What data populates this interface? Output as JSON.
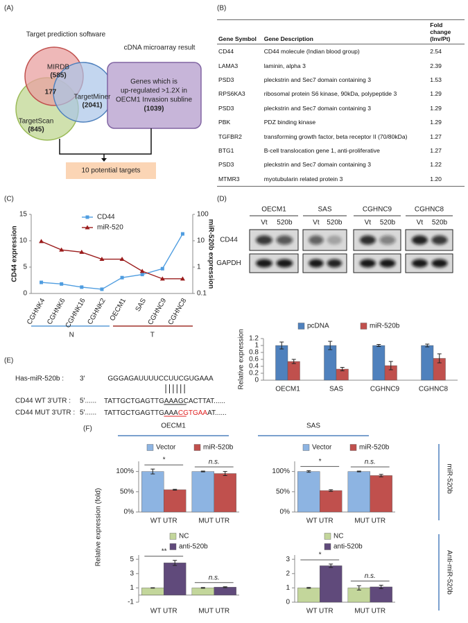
{
  "panel_labels": [
    "(A)",
    "(B)",
    "(C)",
    "(D)",
    "(E)",
    "(F)"
  ],
  "venn": {
    "title": "Target prediction software",
    "sets": [
      {
        "name": "MIRDB",
        "count": "(585)"
      },
      {
        "name": "TargetMiner",
        "count": "(2041)"
      },
      {
        "name": "TargetScan",
        "count": "(845)"
      }
    ],
    "overlap": "177",
    "microarray_title": "cDNA microarray result",
    "microarray_text": [
      "Genes which is",
      "up-regulated >1.2X in",
      "OECM1 Invasion subline"
    ],
    "microarray_count": "(1039)",
    "result": "10 potential targets"
  },
  "table": {
    "headers": [
      "Gene Symbol",
      "Gene Description",
      "Fold change (Inv/Pt)"
    ],
    "rows": [
      [
        "CD44",
        "CD44 molecule (Indian blood group)",
        "2.54"
      ],
      [
        "LAMA3",
        "laminin, alpha 3",
        "2.39"
      ],
      [
        "PSD3",
        "pleckstrin and Sec7 domain containing 3",
        "1.53"
      ],
      [
        "RPS6KA3",
        "ribosomal protein S6 kinase, 90kDa, polypeptide 3",
        "1.29"
      ],
      [
        "PSD3",
        "pleckstrin and Sec7 domain containing 3",
        "1.29"
      ],
      [
        "PBK",
        "PDZ binding kinase",
        "1.29"
      ],
      [
        "TGFBR2",
        "transforming growth factor, beta receptor II (70/80kDa)",
        "1.27"
      ],
      [
        "BTG1",
        "B-cell translocation gene 1, anti-proliferative",
        "1.27"
      ],
      [
        "PSD3",
        "pleckstrin and Sec7 domain containing 3",
        "1.22"
      ],
      [
        "MTMR3",
        "myotubularin related protein 3",
        "1.20"
      ]
    ]
  },
  "blot": {
    "cell_lines": [
      "OECM1",
      "SAS",
      "CGHNC9",
      "CGHNC8"
    ],
    "lanes": [
      "Vt",
      "520b"
    ],
    "proteins": [
      "CD44",
      "GAPDH"
    ]
  },
  "sequence": {
    "mirna_label": "Has-miR-520b :",
    "mirna_end": "3'",
    "mirna": "GGGAGAUUUUCCUUCGUGAAA",
    "targets": [
      {
        "label": "CD44 WT 3'UTR :",
        "end": "5'......",
        "pre": "TATTGCTGAGTTGAAA",
        "site": "GCACTT",
        "post": "AT......"
      },
      {
        "label": "CD44 MUT 3'UTR :",
        "end": "5'......",
        "pre": "TATTGCTGAGTTGAAA",
        "site": "CGTGAA",
        "post": "AT......"
      }
    ]
  },
  "panel_f": {
    "groups": [
      "OECM1",
      "SAS"
    ],
    "ylabel": "Relative expression (fold)",
    "row_labels": [
      "miR-520b",
      "Anti-miR-520b"
    ]
  },
  "chart_data": [
    {
      "type": "line",
      "categories": [
        "CGHNK4",
        "CGHNK6",
        "CGHNK16",
        "CGHNK2",
        "OECM1",
        "SAS",
        "CGHNC9",
        "CGHNC8"
      ],
      "groups": [
        "N",
        "T"
      ],
      "series": [
        {
          "name": "CD44",
          "color": "#4f9de0",
          "values": [
            2.1,
            1.8,
            1.2,
            0.8,
            3.0,
            3.6,
            4.7,
            11.3
          ]
        },
        {
          "name": "miR-520",
          "color": "#9b1c1c",
          "axis": "y2",
          "values": [
            9.5,
            4.5,
            3.7,
            2.0,
            2.0,
            0.7,
            0.36,
            0.36
          ]
        }
      ],
      "ylabel": "CD44 expression",
      "y2label": "miR-520b expression",
      "ylim": [
        0,
        15
      ],
      "yticks": [
        0,
        5,
        10,
        15
      ],
      "y2lim": [
        0.1,
        100
      ],
      "y2ticks": [
        0.1,
        1,
        10,
        100
      ],
      "y2log": true
    },
    {
      "type": "bar",
      "categories": [
        "OECM1",
        "SAS",
        "CGHNC9",
        "CGHNC8"
      ],
      "series": [
        {
          "name": "pcDNA",
          "color": "#4f81bd",
          "values": [
            1,
            1,
            1,
            1
          ],
          "errors": [
            0.1,
            0.12,
            0.03,
            0.04
          ]
        },
        {
          "name": "miR-520b",
          "color": "#c0504d",
          "values": [
            0.54,
            0.32,
            0.42,
            0.63
          ],
          "errors": [
            0.06,
            0.05,
            0.12,
            0.13
          ]
        }
      ],
      "ylabel": "Relative expression",
      "ylim": [
        0,
        1.2
      ],
      "yticks": [
        0,
        0.2,
        0.4,
        0.6,
        0.8,
        1,
        1.2
      ]
    },
    {
      "type": "bar",
      "categories": [
        "WT UTR",
        "MUT UTR"
      ],
      "series": [
        {
          "name": "Vector",
          "color": "#8db4e2",
          "values": [
            100,
            100
          ],
          "errors": [
            6,
            1
          ]
        },
        {
          "name": "miR-520b",
          "color": "#c0504d",
          "values": [
            55,
            95
          ],
          "errors": [
            1,
            5
          ]
        }
      ],
      "annotations": [
        "*",
        "n.s."
      ],
      "ylim": [
        0,
        125
      ],
      "yticks": [
        {
          "value": 0,
          "label": "0%"
        },
        {
          "value": 50,
          "label": "50%"
        },
        {
          "value": 100,
          "label": "100%"
        }
      ]
    },
    {
      "type": "bar",
      "categories": [
        "WT UTR",
        "MUT UTR"
      ],
      "series": [
        {
          "name": "Vector",
          "color": "#8db4e2",
          "values": [
            100,
            100
          ],
          "errors": [
            2,
            1
          ]
        },
        {
          "name": "miR-520b",
          "color": "#c0504d",
          "values": [
            53,
            90
          ],
          "errors": [
            2,
            3
          ]
        }
      ],
      "annotations": [
        "*",
        "n.s."
      ],
      "ylim": [
        0,
        125
      ],
      "yticks": [
        {
          "value": 0,
          "label": "0%"
        },
        {
          "value": 50,
          "label": "50%"
        },
        {
          "value": 100,
          "label": "100%"
        }
      ]
    },
    {
      "type": "bar",
      "categories": [
        "WT UTR",
        "MUT UTR"
      ],
      "series": [
        {
          "name": "NC",
          "color": "#c3d69b",
          "values": [
            1,
            1
          ],
          "errors": [
            0.03,
            0.05
          ]
        },
        {
          "name": "anti-520b",
          "color": "#604a7b",
          "values": [
            4.5,
            1.1
          ],
          "errors": [
            0.35,
            0.06
          ]
        }
      ],
      "annotations": [
        "**",
        "n.s."
      ],
      "ylim": [
        -1,
        5.6
      ],
      "yticks": [
        -1,
        1,
        3,
        5
      ]
    },
    {
      "type": "bar",
      "categories": [
        "WT UTR",
        "MUT UTR"
      ],
      "series": [
        {
          "name": "NC",
          "color": "#c3d69b",
          "values": [
            1,
            1
          ],
          "errors": [
            0.03,
            0.15
          ]
        },
        {
          "name": "anti-520b",
          "color": "#604a7b",
          "values": [
            2.55,
            1.07
          ],
          "errors": [
            0.12,
            0.12
          ]
        }
      ],
      "annotations": [
        "*",
        "n.s."
      ],
      "ylim": [
        0,
        3.3
      ],
      "yticks": [
        0,
        1,
        2,
        3
      ]
    }
  ]
}
